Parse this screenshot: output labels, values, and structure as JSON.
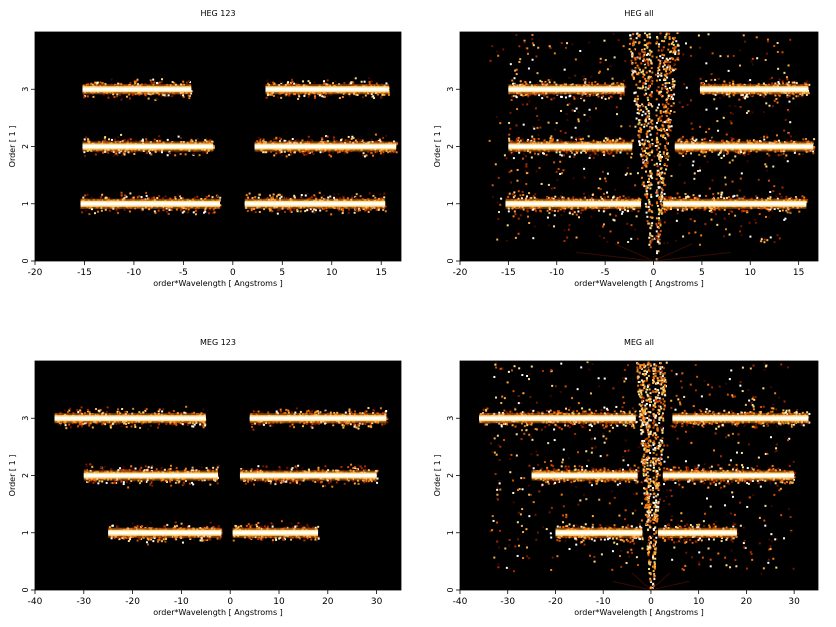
{
  "chart_data": [
    {
      "type": "heatmap",
      "title": "HEG 123",
      "xlabel": "order*Wavelength [ Angstroms ]",
      "ylabel": "Order [ 1 ]",
      "xlim": [
        -20,
        17
      ],
      "ylim": [
        0,
        4
      ],
      "xticks": [
        -20,
        -15,
        -10,
        -5,
        0,
        5,
        10,
        15
      ],
      "yticks": [
        0,
        1,
        2,
        3
      ],
      "background": "#000000",
      "bands": [
        {
          "order": 1,
          "ranges": [
            [
              -15.4,
              -1.3
            ],
            [
              1.2,
              15.4
            ]
          ]
        },
        {
          "order": 2,
          "ranges": [
            [
              -15.2,
              -2.0
            ],
            [
              2.2,
              16.5
            ]
          ]
        },
        {
          "order": 3,
          "ranges": [
            [
              -15.2,
              -4.2
            ],
            [
              3.3,
              15.8
            ]
          ]
        }
      ],
      "zero_order_spray": false
    },
    {
      "type": "heatmap",
      "title": "HEG all",
      "xlabel": "order*Wavelength [ Angstroms ]",
      "ylabel": "Order [ 1 ]",
      "xlim": [
        -20,
        17
      ],
      "ylim": [
        0,
        4
      ],
      "xticks": [
        -20,
        -15,
        -10,
        -5,
        0,
        5,
        10,
        15
      ],
      "yticks": [
        0,
        1,
        2,
        3
      ],
      "background": "#000000",
      "bands": [
        {
          "order": 1,
          "ranges": [
            [
              -15.3,
              -1.3
            ],
            [
              1.0,
              15.8
            ]
          ]
        },
        {
          "order": 2,
          "ranges": [
            [
              -15.0,
              -2.2
            ],
            [
              2.2,
              16.5
            ]
          ]
        },
        {
          "order": 3,
          "ranges": [
            [
              -15.0,
              -3.0
            ],
            [
              4.8,
              16.0
            ]
          ]
        }
      ],
      "zero_order_spray": true
    },
    {
      "type": "heatmap",
      "title": "MEG 123",
      "xlabel": "order*Wavelength [ Angstroms ]",
      "ylabel": "Order [ 1 ]",
      "xlim": [
        -40,
        35
      ],
      "ylim": [
        0,
        4
      ],
      "xticks": [
        -40,
        -30,
        -20,
        -10,
        0,
        10,
        20,
        30
      ],
      "yticks": [
        0,
        1,
        2,
        3
      ],
      "background": "#000000",
      "bands": [
        {
          "order": 1,
          "ranges": [
            [
              -25.0,
              -1.8
            ],
            [
              0.5,
              18.0
            ]
          ]
        },
        {
          "order": 2,
          "ranges": [
            [
              -30.0,
              -2.5
            ],
            [
              2.0,
              30.0
            ]
          ]
        },
        {
          "order": 3,
          "ranges": [
            [
              -36.0,
              -5.0
            ],
            [
              4.0,
              32.0
            ]
          ]
        }
      ],
      "zero_order_spray": false
    },
    {
      "type": "heatmap",
      "title": "MEG all",
      "xlabel": "order*Wavelength [ Angstroms ]",
      "ylabel": "Order [ 1 ]",
      "xlim": [
        -40,
        35
      ],
      "ylim": [
        0,
        4
      ],
      "xticks": [
        -40,
        -30,
        -20,
        -10,
        0,
        10,
        20,
        30
      ],
      "yticks": [
        0,
        1,
        2,
        3
      ],
      "background": "#000000",
      "bands": [
        {
          "order": 1,
          "ranges": [
            [
              -20.0,
              -1.8
            ],
            [
              1.5,
              18.0
            ]
          ]
        },
        {
          "order": 2,
          "ranges": [
            [
              -25.0,
              -2.8
            ],
            [
              2.5,
              30.0
            ]
          ]
        },
        {
          "order": 3,
          "ranges": [
            [
              -36.0,
              -3.2
            ],
            [
              4.5,
              33.0
            ]
          ]
        }
      ],
      "zero_order_spray": true
    }
  ]
}
